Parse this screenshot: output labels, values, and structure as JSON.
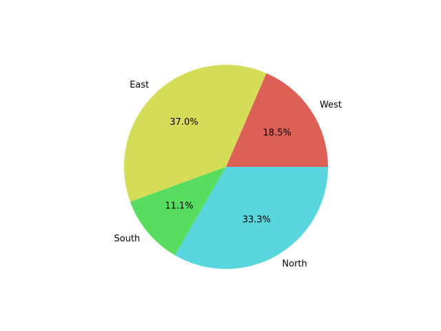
{
  "chart_data": {
    "type": "pie",
    "categories": [
      "West",
      "East",
      "South",
      "North"
    ],
    "values": [
      18.5,
      37.0,
      11.1,
      33.3
    ],
    "percent_labels": [
      "18.5%",
      "37.0%",
      "11.1%",
      "33.3%"
    ],
    "colors": [
      "#dd6057",
      "#d5dc58",
      "#59dd60",
      "#58d5dd"
    ],
    "start_angle_deg": 0,
    "direction": "counterclockwise",
    "title": "",
    "legend": "none"
  }
}
